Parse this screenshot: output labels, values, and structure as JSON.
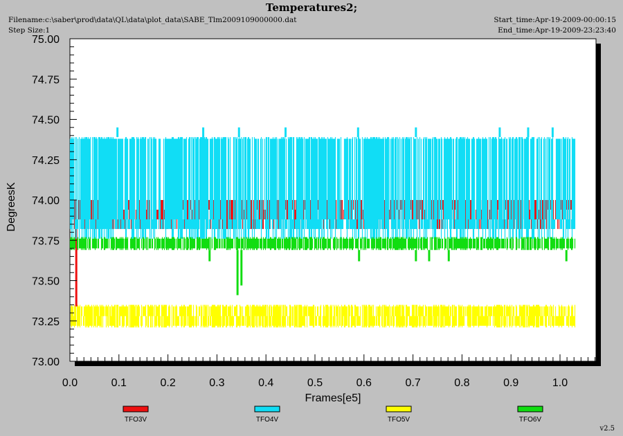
{
  "header": {
    "title": "Temperatures2;",
    "filename": "Filename:c:\\saber\\prod\\data\\QL\\data\\plot_data\\SABE_Tlm2009109000000.dat",
    "step_size": "Step Size:1",
    "start_time": "Start_time:Apr-19-2009-00:00:15",
    "end_time": "End_time:Apr-19-2009-23:23:40"
  },
  "version": "v2.5",
  "chart_data": {
    "type": "line",
    "xlabel": "Frames[e5]",
    "ylabel": "DegreesK",
    "xlim": [
      0.0,
      1.08
    ],
    "ylim": [
      73.0,
      75.0
    ],
    "x_ticks": [
      "0.0",
      "0.1",
      "0.2",
      "0.3",
      "0.4",
      "0.5",
      "0.6",
      "0.7",
      "0.8",
      "0.9",
      "1.0"
    ],
    "y_ticks": [
      "73.00",
      "73.25",
      "73.50",
      "73.75",
      "74.00",
      "74.25",
      "74.50",
      "74.75",
      "75.00"
    ],
    "grid": false,
    "legend_position": "bottom",
    "x_end": 1.03,
    "series": [
      {
        "name": "TFO3V",
        "color": "#ee1111",
        "levels": [
          73.88,
          73.94,
          74.0
        ],
        "band": [
          73.82,
          74.0
        ],
        "spikes": [
          {
            "x": 0.013,
            "y": 73.34
          }
        ]
      },
      {
        "name": "TFO4V",
        "color": "#11ddf5",
        "levels": [
          73.82,
          73.88,
          74.38
        ],
        "band": [
          73.76,
          74.39
        ],
        "spikes": [
          {
            "x": 0.097,
            "y": 74.45
          },
          {
            "x": 0.272,
            "y": 74.45
          },
          {
            "x": 0.345,
            "y": 74.45
          },
          {
            "x": 0.44,
            "y": 74.45
          },
          {
            "x": 0.588,
            "y": 74.45
          },
          {
            "x": 0.706,
            "y": 74.45
          },
          {
            "x": 0.877,
            "y": 74.45
          },
          {
            "x": 0.935,
            "y": 74.45
          },
          {
            "x": 0.985,
            "y": 74.45
          }
        ]
      },
      {
        "name": "TFO5V",
        "color": "#ffff00",
        "levels": [
          73.22,
          73.28,
          73.34
        ],
        "band": [
          73.21,
          73.35
        ],
        "spikes": []
      },
      {
        "name": "TFO6V",
        "color": "#11dd11",
        "levels": [
          73.7,
          73.76
        ],
        "band": [
          73.69,
          73.77
        ],
        "spikes": [
          {
            "x": 0.285,
            "y": 73.62
          },
          {
            "x": 0.342,
            "y": 73.41
          },
          {
            "x": 0.35,
            "y": 73.47
          },
          {
            "x": 0.59,
            "y": 73.62
          },
          {
            "x": 0.706,
            "y": 73.62
          },
          {
            "x": 0.733,
            "y": 73.62
          },
          {
            "x": 0.773,
            "y": 73.62
          },
          {
            "x": 1.013,
            "y": 73.62
          }
        ]
      }
    ]
  }
}
